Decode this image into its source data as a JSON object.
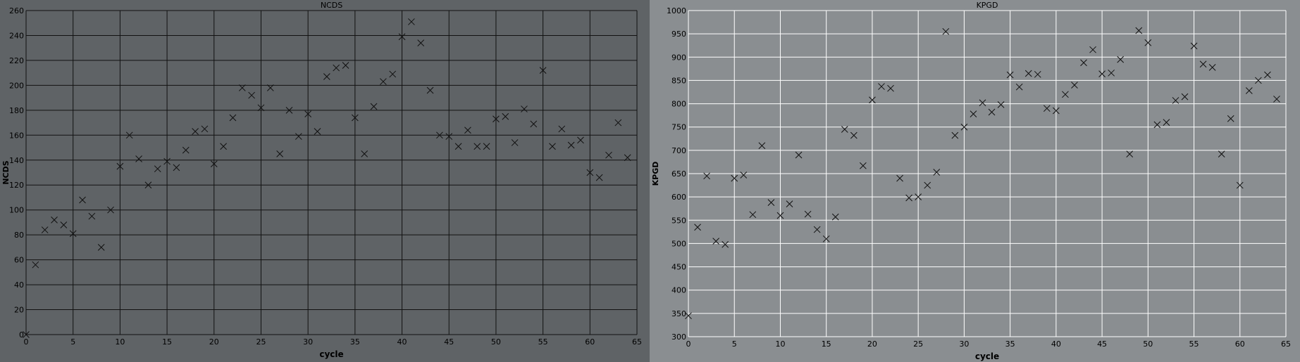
{
  "chart_data": [
    {
      "type": "scatter",
      "title": "NCDS",
      "xlabel": "cycle",
      "ylabel": "NCDS",
      "xlim": [
        0,
        65
      ],
      "ylim": [
        0,
        260
      ],
      "xticks": [
        0,
        5,
        10,
        15,
        20,
        25,
        30,
        35,
        40,
        45,
        50,
        55,
        60,
        65
      ],
      "yticks": [
        0,
        20,
        40,
        60,
        80,
        100,
        120,
        140,
        160,
        180,
        200,
        220,
        240,
        260
      ],
      "grid": true,
      "marker": "x",
      "colors": {
        "background": "#5f6366",
        "grid": "#121212",
        "marker": "#111111",
        "text": "#000000"
      },
      "series": [
        {
          "x": [
            0,
            1,
            2,
            3,
            4,
            5,
            6,
            7,
            8,
            9,
            10,
            11,
            12,
            13,
            14,
            15,
            16,
            17,
            18,
            19,
            20,
            21,
            22,
            23,
            24,
            25,
            26,
            27,
            28,
            29,
            30,
            31,
            32,
            33,
            34,
            35,
            36,
            37,
            38,
            39,
            40,
            41,
            42,
            43,
            44,
            45,
            46,
            47,
            48,
            49,
            50,
            51,
            52,
            53,
            54,
            55,
            56,
            57,
            58,
            59,
            60,
            61,
            62,
            63,
            64
          ],
          "y": [
            0,
            56,
            84,
            92,
            88,
            81,
            108,
            95,
            70,
            100,
            135,
            160,
            141,
            120,
            133,
            139,
            134,
            148,
            163,
            165,
            137,
            151,
            174,
            198,
            192,
            182,
            198,
            145,
            180,
            159,
            177,
            163,
            207,
            214,
            216,
            174,
            145,
            183,
            203,
            209,
            239,
            251,
            234,
            196,
            160,
            159,
            151,
            164,
            151,
            151,
            173,
            175,
            154,
            181,
            169,
            212,
            151,
            165,
            152,
            156,
            130,
            126,
            144,
            170,
            142
          ]
        }
      ]
    },
    {
      "type": "scatter",
      "title": "KPGD",
      "xlabel": "cycle",
      "ylabel": "KPGD",
      "xlim": [
        0,
        65
      ],
      "ylim": [
        300,
        1000
      ],
      "xticks": [
        0,
        5,
        10,
        15,
        20,
        25,
        30,
        35,
        40,
        45,
        50,
        55,
        60,
        65
      ],
      "yticks": [
        300,
        350,
        400,
        450,
        500,
        550,
        600,
        650,
        700,
        750,
        800,
        850,
        900,
        950,
        1000
      ],
      "grid": true,
      "marker": "x",
      "colors": {
        "background": "#8a8e91",
        "grid": "#ffffff",
        "marker": "#111111",
        "text": "#000000"
      },
      "series": [
        {
          "x": [
            0,
            1,
            2,
            3,
            4,
            5,
            6,
            7,
            8,
            9,
            10,
            11,
            12,
            13,
            14,
            15,
            16,
            17,
            18,
            19,
            20,
            21,
            22,
            23,
            24,
            25,
            26,
            27,
            28,
            29,
            30,
            31,
            32,
            33,
            34,
            35,
            36,
            37,
            38,
            39,
            40,
            41,
            42,
            43,
            44,
            45,
            46,
            47,
            48,
            49,
            50,
            51,
            52,
            53,
            54,
            55,
            56,
            57,
            58,
            59,
            60,
            61,
            62,
            63,
            64
          ],
          "y": [
            345,
            535,
            645,
            505,
            498,
            640,
            647,
            562,
            710,
            588,
            560,
            585,
            690,
            563,
            530,
            510,
            557,
            745,
            732,
            667,
            808,
            837,
            833,
            640,
            598,
            600,
            625,
            653,
            955,
            732,
            750,
            778,
            802,
            782,
            798,
            862,
            836,
            865,
            863,
            790,
            785,
            820,
            840,
            888,
            916,
            864,
            866,
            895,
            692,
            957,
            931,
            755,
            760,
            807,
            815,
            924,
            885,
            878,
            692,
            768,
            625,
            828,
            850,
            862,
            810
          ]
        }
      ]
    }
  ]
}
